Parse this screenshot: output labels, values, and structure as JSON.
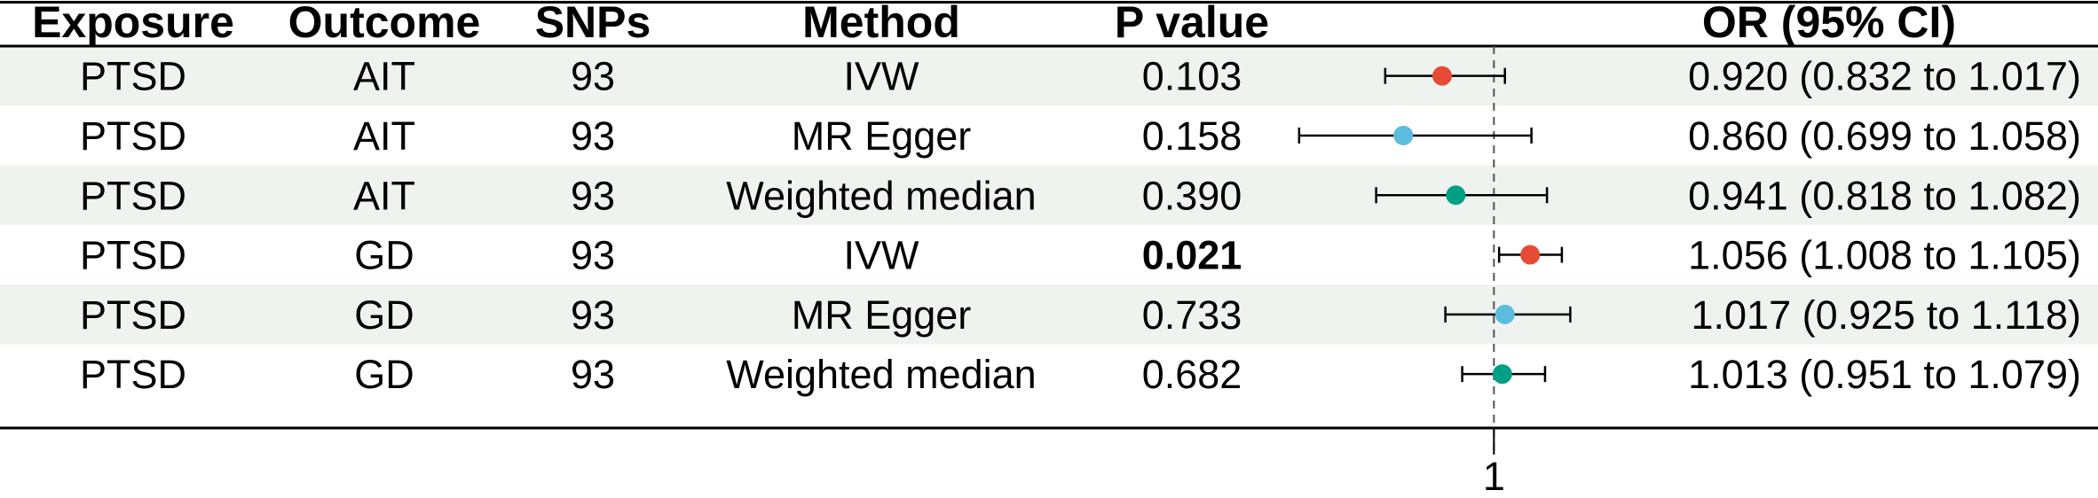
{
  "table": {
    "headers": {
      "exposure": "Exposure",
      "outcome": "Outcome",
      "snps": "SNPs",
      "method": "Method",
      "pvalue": "P value",
      "or": "OR (95% CI)"
    },
    "rows": [
      {
        "exposure": "PTSD",
        "outcome": "AIT",
        "snps": "93",
        "method": "IVW",
        "pvalue": "0.103",
        "pvalue_bold": false,
        "or_text": "0.920 (0.832 to 1.017)"
      },
      {
        "exposure": "PTSD",
        "outcome": "AIT",
        "snps": "93",
        "method": "MR Egger",
        "pvalue": "0.158",
        "pvalue_bold": false,
        "or_text": "0.860 (0.699 to 1.058)"
      },
      {
        "exposure": "PTSD",
        "outcome": "AIT",
        "snps": "93",
        "method": "Weighted median",
        "pvalue": "0.390",
        "pvalue_bold": false,
        "or_text": "0.941 (0.818 to 1.082)"
      },
      {
        "exposure": "PTSD",
        "outcome": "GD",
        "snps": "93",
        "method": "IVW",
        "pvalue": "0.021",
        "pvalue_bold": true,
        "or_text": "1.056 (1.008 to 1.105)"
      },
      {
        "exposure": "PTSD",
        "outcome": "GD",
        "snps": "93",
        "method": "MR Egger",
        "pvalue": "0.733",
        "pvalue_bold": false,
        "or_text": "1.017 (0.925 to 1.118)"
      },
      {
        "exposure": "PTSD",
        "outcome": "GD",
        "snps": "93",
        "method": "Weighted median",
        "pvalue": "0.682",
        "pvalue_bold": false,
        "or_text": "1.013 (0.951 to 1.079)"
      }
    ]
  },
  "chart_data": {
    "type": "scatter",
    "title": "",
    "xlabel": "",
    "ylabel": "",
    "reference_line": 1,
    "x_tick_labels": [
      "1"
    ],
    "categories": [
      "IVW",
      "MR Egger",
      "Weighted median",
      "IVW",
      "MR Egger",
      "Weighted median"
    ],
    "values": [
      0.92,
      0.86,
      0.941,
      1.056,
      1.017,
      1.013
    ],
    "ci_lower": [
      0.832,
      0.699,
      0.818,
      1.008,
      0.925,
      0.951
    ],
    "ci_upper": [
      1.017,
      1.058,
      1.082,
      1.105,
      1.118,
      1.079
    ],
    "xlim": [
      0.68,
      1.16
    ],
    "grid": false,
    "legend": "none"
  },
  "colors": {
    "IVW": "#E64B35",
    "MR Egger": "#5BBCDD",
    "Weighted median": "#00A087",
    "stripe": "#EEF3F0",
    "ref_line": "#555555"
  }
}
